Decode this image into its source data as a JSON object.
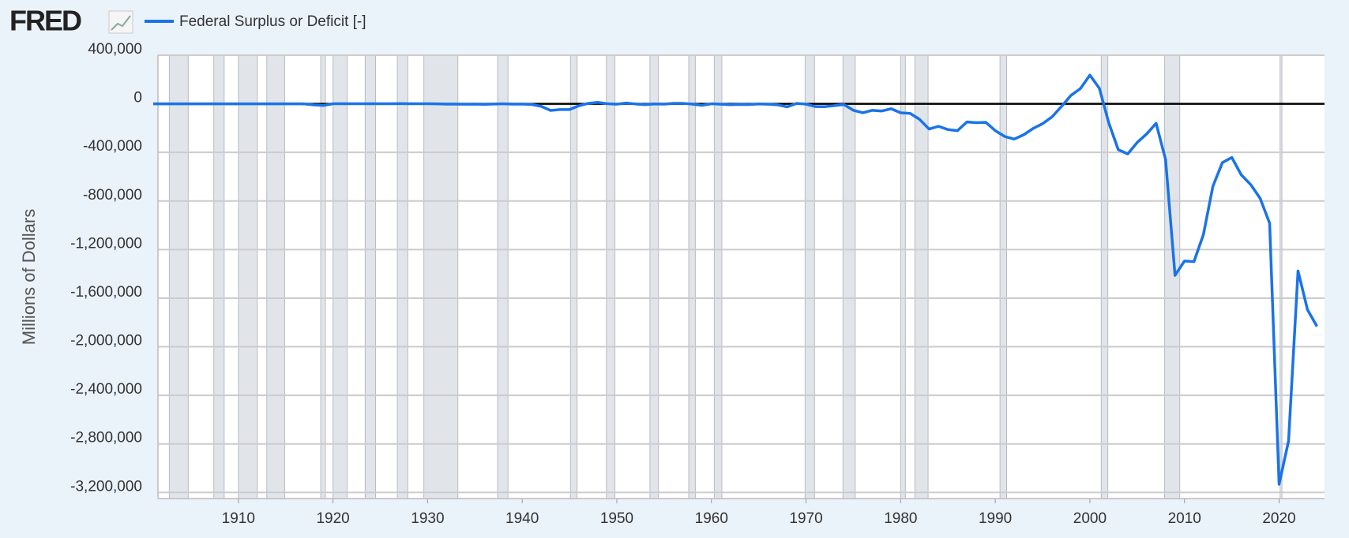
{
  "logo": "FRED",
  "chart_data": {
    "type": "line",
    "legend_label": "Federal Surplus or Deficit [-]",
    "y_label": "Millions of Dollars",
    "x": [
      1901,
      1902,
      1903,
      1904,
      1905,
      1906,
      1907,
      1908,
      1909,
      1910,
      1911,
      1912,
      1913,
      1914,
      1915,
      1916,
      1917,
      1918,
      1919,
      1920,
      1921,
      1922,
      1923,
      1924,
      1925,
      1926,
      1927,
      1928,
      1929,
      1930,
      1931,
      1932,
      1933,
      1934,
      1935,
      1936,
      1937,
      1938,
      1939,
      1940,
      1941,
      1942,
      1943,
      1944,
      1945,
      1946,
      1947,
      1948,
      1949,
      1950,
      1951,
      1952,
      1953,
      1954,
      1955,
      1956,
      1957,
      1958,
      1959,
      1960,
      1961,
      1962,
      1963,
      1964,
      1965,
      1966,
      1967,
      1968,
      1969,
      1970,
      1971,
      1972,
      1973,
      1974,
      1975,
      1976,
      1977,
      1978,
      1979,
      1980,
      1981,
      1982,
      1983,
      1984,
      1985,
      1986,
      1987,
      1988,
      1989,
      1990,
      1991,
      1992,
      1993,
      1994,
      1995,
      1996,
      1997,
      1998,
      1999,
      2000,
      2001,
      2002,
      2003,
      2004,
      2005,
      2006,
      2007,
      2008,
      2009,
      2010,
      2011,
      2012,
      2013,
      2014,
      2015,
      2016,
      2017,
      2018,
      2019,
      2020,
      2021,
      2022,
      2023,
      2024
    ],
    "series": [
      {
        "name": "Federal Surplus or Deficit [-]",
        "color": "#1a73e8",
        "values": [
          63,
          77,
          45,
          -43,
          -23,
          25,
          87,
          -57,
          -89,
          -18,
          11,
          3,
          0,
          0,
          -63,
          48,
          -853,
          -9032,
          -13363,
          291,
          509,
          736,
          713,
          963,
          717,
          865,
          1155,
          939,
          734,
          738,
          -462,
          -2735,
          -2602,
          -3586,
          -2803,
          -4304,
          -2193,
          -89,
          -2846,
          -2920,
          -4941,
          -20503,
          -54554,
          -47557,
          -47553,
          -15936,
          4018,
          11796,
          580,
          -3119,
          6102,
          -1519,
          -6493,
          -1154,
          -2993,
          3947,
          3412,
          -2769,
          -12849,
          301,
          -3335,
          -7146,
          -4756,
          -5915,
          -1411,
          -3698,
          -8643,
          -25161,
          3242,
          -2842,
          -23033,
          -23373,
          -14908,
          -6135,
          -53242,
          -73732,
          -53659,
          -59185,
          -40726,
          -73830,
          -78968,
          -127977,
          -207802,
          -185367,
          -212308,
          -221227,
          -149730,
          -155178,
          -152639,
          -221036,
          -269238,
          -290321,
          -255051,
          -203186,
          -163952,
          -107431,
          -21884,
          69270,
          125610,
          236241,
          128236,
          -157758,
          -377585,
          -412727,
          -318346,
          -248181,
          -160701,
          -458553,
          -1412688,
          -1294373,
          -1299599,
          -1076573,
          -679775,
          -484602,
          -441960,
          -584651,
          -665446,
          -779137,
          -983594,
          -3131917,
          -2775306,
          -1375905,
          -1695242,
          -1832823
        ]
      }
    ],
    "recessions": [
      [
        1902.7,
        1904.7
      ],
      [
        1907.4,
        1908.5
      ],
      [
        1910.0,
        1912.0
      ],
      [
        1913.0,
        1914.9
      ],
      [
        1918.7,
        1919.2
      ],
      [
        1920.0,
        1921.5
      ],
      [
        1923.4,
        1924.5
      ],
      [
        1926.8,
        1927.9
      ],
      [
        1929.6,
        1933.2
      ],
      [
        1937.4,
        1938.5
      ],
      [
        1945.1,
        1945.8
      ],
      [
        1948.9,
        1949.8
      ],
      [
        1953.5,
        1954.4
      ],
      [
        1957.6,
        1958.3
      ],
      [
        1960.3,
        1961.1
      ],
      [
        1969.9,
        1970.9
      ],
      [
        1973.9,
        1975.2
      ],
      [
        1980.0,
        1980.5
      ],
      [
        1981.5,
        1982.9
      ],
      [
        1990.5,
        1991.2
      ],
      [
        2001.2,
        2001.9
      ],
      [
        2007.9,
        2009.5
      ],
      [
        2020.1,
        2020.3
      ]
    ],
    "xlim": [
      1901.5,
      2024.8
    ],
    "xticks": [
      1910,
      1920,
      1930,
      1940,
      1950,
      1960,
      1970,
      1980,
      1990,
      2000,
      2010,
      2020
    ],
    "ylim": [
      -3250000,
      400000
    ],
    "yticks": [
      {
        "value": 400000,
        "label": "400,000"
      },
      0,
      {
        "value": -400000,
        "label": "-400,000"
      },
      {
        "value": -800000,
        "label": "-800,000"
      },
      {
        "value": -1200000,
        "label": "-1,200,000"
      },
      {
        "value": -1600000,
        "label": "-1,600,000"
      },
      {
        "value": -2000000,
        "label": "-2,000,000"
      },
      {
        "value": -2400000,
        "label": "-2,400,000"
      },
      {
        "value": -2800000,
        "label": "-2,800,000"
      },
      {
        "value": -3200000,
        "label": "-3,200,000"
      }
    ],
    "grid": true
  }
}
